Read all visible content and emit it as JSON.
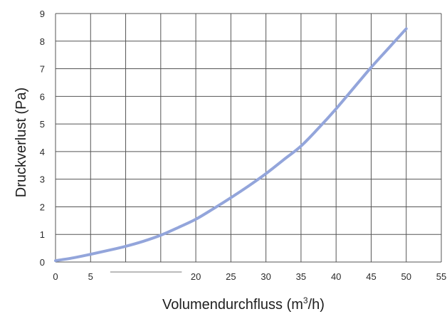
{
  "chart_data": {
    "type": "line",
    "title": "",
    "xlabel": "Volumendurchfluss (m3/h)",
    "xlabel_parts": {
      "before": "Volumendurchfluss (m",
      "superscript": "3",
      "after": "/h)"
    },
    "ylabel": "Druckverlust  (Pa)",
    "xlim": [
      0,
      55
    ],
    "ylim": [
      0,
      9
    ],
    "x_ticks": [
      0,
      5,
      10,
      15,
      20,
      25,
      30,
      35,
      40,
      45,
      50,
      55
    ],
    "x_tick_labels": [
      "0",
      "5",
      "",
      "",
      "20",
      "25",
      "30",
      "35",
      "40",
      "45",
      "50",
      "55"
    ],
    "y_ticks": [
      0,
      1,
      2,
      3,
      4,
      5,
      6,
      7,
      8,
      9
    ],
    "y_tick_labels": [
      "0",
      "1",
      "2",
      "3",
      "4",
      "5",
      "6",
      "7",
      "8",
      "9"
    ],
    "grid": true,
    "series": [
      {
        "color": "#93a5db",
        "x": [
          0,
          2.5,
          5,
          7.5,
          10,
          12.5,
          15,
          17.5,
          20,
          22.5,
          25,
          27.5,
          30,
          32.5,
          35,
          37.5,
          40,
          42.5,
          45,
          47.5,
          50
        ],
        "values": [
          0.05,
          0.15,
          0.28,
          0.42,
          0.57,
          0.75,
          0.97,
          1.25,
          1.55,
          1.93,
          2.33,
          2.75,
          3.2,
          3.7,
          4.2,
          4.85,
          5.55,
          6.3,
          7.05,
          7.75,
          8.45
        ]
      }
    ]
  }
}
